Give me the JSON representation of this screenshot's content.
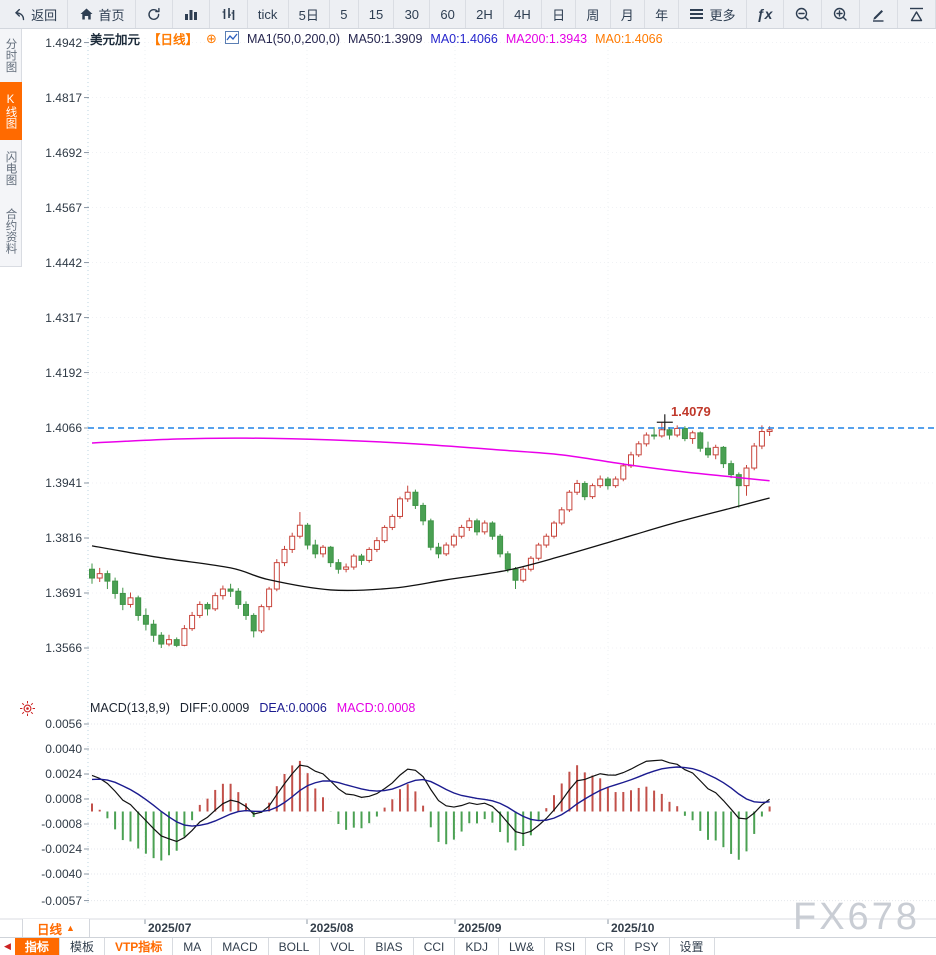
{
  "toolbar": {
    "items": [
      {
        "name": "back-button",
        "icon": "back",
        "label": "返回"
      },
      {
        "name": "home-button",
        "icon": "home",
        "label": "首页"
      },
      {
        "name": "refresh-button",
        "icon": "refresh",
        "label": ""
      },
      {
        "name": "bar-chart-button",
        "icon": "bars",
        "label": ""
      },
      {
        "name": "indicator-button",
        "icon": "candles",
        "label": ""
      },
      {
        "name": "period-tick",
        "icon": "",
        "label": "tick"
      },
      {
        "name": "period-5d",
        "icon": "",
        "label": "5日"
      },
      {
        "name": "period-5",
        "icon": "",
        "label": "5"
      },
      {
        "name": "period-15",
        "icon": "",
        "label": "15"
      },
      {
        "name": "period-30",
        "icon": "",
        "label": "30"
      },
      {
        "name": "period-60",
        "icon": "",
        "label": "60"
      },
      {
        "name": "period-2h",
        "icon": "",
        "label": "2H"
      },
      {
        "name": "period-4h",
        "icon": "",
        "label": "4H"
      },
      {
        "name": "period-day",
        "icon": "",
        "label": "日"
      },
      {
        "name": "period-week",
        "icon": "",
        "label": "周"
      },
      {
        "name": "period-month",
        "icon": "",
        "label": "月"
      },
      {
        "name": "period-year",
        "icon": "",
        "label": "年"
      },
      {
        "name": "more-button",
        "icon": "menu",
        "label": "更多"
      },
      {
        "name": "fx-button",
        "icon": "fx",
        "label": ""
      },
      {
        "name": "zoom-out-button",
        "icon": "zoomout",
        "label": ""
      },
      {
        "name": "zoom-in-button",
        "icon": "zoomin",
        "label": ""
      },
      {
        "name": "draw-button",
        "icon": "pencil",
        "label": ""
      },
      {
        "name": "shapes-button",
        "icon": "triangle",
        "label": ""
      }
    ]
  },
  "sidebar": {
    "items": [
      {
        "label": "分时图",
        "active": false
      },
      {
        "label": "K线图",
        "active": true
      },
      {
        "label": "闪电图",
        "active": false
      },
      {
        "label": "合约资料",
        "active": false
      }
    ]
  },
  "chart_header": {
    "symbol": "美元加元",
    "period_tag": "【日线】",
    "plus": "⊕",
    "ma_settings": "MA1(50,0,200,0)",
    "ma50": "MA50:1.3909",
    "ma0_blue": "MA0:1.4066",
    "ma200": "MA200:1.3943",
    "ma0_orange": "MA0:1.4066"
  },
  "macd_header": {
    "title": "MACD(13,8,9)",
    "diff": "DIFF:0.0009",
    "dea": "DEA:0.0006",
    "macd": "MACD:0.0008"
  },
  "price_axis": {
    "ticks": [
      1.4942,
      1.4817,
      1.4692,
      1.4567,
      1.4442,
      1.4317,
      1.4192,
      1.4066,
      1.3941,
      1.3816,
      1.3691,
      1.3566
    ]
  },
  "macd_axis": {
    "ticks": [
      0.0056,
      0.004,
      0.0024,
      0.0008,
      -0.0008,
      -0.0024,
      -0.004,
      -0.0057
    ]
  },
  "x_axis": {
    "labels": [
      "2025/07",
      "2025/08",
      "2025/09",
      "2025/10"
    ],
    "positions": [
      145,
      307,
      455,
      608
    ]
  },
  "annotation": {
    "peak": "1.4079"
  },
  "period_selector": {
    "label": "日线",
    "arrow": "▲"
  },
  "bottom_tabs": {
    "items": [
      {
        "label": "指标",
        "style": "active"
      },
      {
        "label": "模板",
        "style": ""
      },
      {
        "label": "VTP指标",
        "style": "orange"
      },
      {
        "label": "MA",
        "style": ""
      },
      {
        "label": "MACD",
        "style": ""
      },
      {
        "label": "BOLL",
        "style": ""
      },
      {
        "label": "VOL",
        "style": ""
      },
      {
        "label": "BIAS",
        "style": ""
      },
      {
        "label": "CCI",
        "style": ""
      },
      {
        "label": "KDJ",
        "style": ""
      },
      {
        "label": "LW&",
        "style": ""
      },
      {
        "label": "RSI",
        "style": ""
      },
      {
        "label": "CR",
        "style": ""
      },
      {
        "label": "PSY",
        "style": ""
      },
      {
        "label": "设置",
        "style": ""
      }
    ]
  },
  "watermark": "FX678",
  "colors": {
    "accent_orange": "#ff6a00",
    "up_red": "#c8453c",
    "down_green": "#3f9447",
    "down_green_fill": "#4aa053",
    "ma50": "#111111",
    "ma200": "#ea00ea",
    "dashed_blue": "#1e82e6",
    "dif_line": "#111111",
    "dea_line": "#1b1b8f",
    "hist_red": "#c2504a",
    "hist_green": "#4ba153"
  },
  "chart_data": {
    "type": "candlestick",
    "symbol": "美元加元",
    "interval": "日线",
    "months": [
      "2025/07",
      "2025/08",
      "2025/09",
      "2025/10"
    ],
    "price_axis_range": [
      1.3566,
      1.4942
    ],
    "dashed_level": 1.4066,
    "peak": {
      "index": 74,
      "value": 1.4079,
      "label": "1.4079"
    },
    "macd_params": [
      13,
      8,
      9
    ],
    "macd_values": {
      "diff": 0.0009,
      "dea": 0.0006,
      "hist": 0.0008
    },
    "ma50_anchors": [
      [
        0,
        1.3798
      ],
      [
        9,
        1.3771
      ],
      [
        18,
        1.3748
      ],
      [
        23,
        1.3721
      ],
      [
        31,
        1.3698
      ],
      [
        39,
        1.3702
      ],
      [
        46,
        1.3721
      ],
      [
        54,
        1.3743
      ],
      [
        61,
        1.3775
      ],
      [
        69,
        1.3816
      ],
      [
        76,
        1.3852
      ],
      [
        83,
        1.3884
      ],
      [
        88,
        1.3907
      ]
    ],
    "ma200_anchors": [
      [
        0,
        1.4032
      ],
      [
        11,
        1.4041
      ],
      [
        20,
        1.4043
      ],
      [
        31,
        1.4039
      ],
      [
        42,
        1.403
      ],
      [
        53,
        1.4016
      ],
      [
        61,
        1.4005
      ],
      [
        69,
        1.3984
      ],
      [
        76,
        1.3968
      ],
      [
        83,
        1.3955
      ],
      [
        88,
        1.3946
      ]
    ],
    "pre_closes": [
      1.356,
      1.3565,
      1.3572,
      1.358,
      1.3588,
      1.3596,
      1.3605,
      1.3612,
      1.362,
      1.3628,
      1.3636,
      1.3645,
      1.3655,
      1.3668,
      1.3684,
      1.3702,
      1.3722,
      1.3742,
      1.376,
      1.3752
    ],
    "candles": [
      [
        1.3745,
        1.3758,
        1.3712,
        1.3725
      ],
      [
        1.3725,
        1.3748,
        1.3716,
        1.3735
      ],
      [
        1.3735,
        1.3742,
        1.37,
        1.3718
      ],
      [
        1.3718,
        1.3726,
        1.3678,
        1.369
      ],
      [
        1.369,
        1.3703,
        1.3652,
        1.3665
      ],
      [
        1.3665,
        1.3692,
        1.3658,
        1.368
      ],
      [
        1.368,
        1.3685,
        1.3628,
        1.364
      ],
      [
        1.364,
        1.3656,
        1.3606,
        1.362
      ],
      [
        1.362,
        1.363,
        1.358,
        1.3595
      ],
      [
        1.3595,
        1.3602,
        1.3566,
        1.3575
      ],
      [
        1.3575,
        1.3596,
        1.357,
        1.3585
      ],
      [
        1.3585,
        1.359,
        1.3568,
        1.3572
      ],
      [
        1.3572,
        1.3618,
        1.357,
        1.361
      ],
      [
        1.361,
        1.3648,
        1.3605,
        1.364
      ],
      [
        1.364,
        1.3672,
        1.3634,
        1.3665
      ],
      [
        1.3665,
        1.367,
        1.364,
        1.3655
      ],
      [
        1.3655,
        1.3692,
        1.365,
        1.3685
      ],
      [
        1.3685,
        1.3708,
        1.3676,
        1.37
      ],
      [
        1.37,
        1.3712,
        1.3682,
        1.3695
      ],
      [
        1.3695,
        1.3702,
        1.3655,
        1.3665
      ],
      [
        1.3665,
        1.3672,
        1.363,
        1.364
      ],
      [
        1.364,
        1.3645,
        1.359,
        1.3605
      ],
      [
        1.3605,
        1.3665,
        1.36,
        1.366
      ],
      [
        1.366,
        1.3705,
        1.3652,
        1.37
      ],
      [
        1.37,
        1.3768,
        1.3695,
        1.376
      ],
      [
        1.376,
        1.3798,
        1.3752,
        1.379
      ],
      [
        1.379,
        1.3828,
        1.3782,
        1.382
      ],
      [
        1.382,
        1.3875,
        1.3815,
        1.3845
      ],
      [
        1.3845,
        1.385,
        1.379,
        1.38
      ],
      [
        1.38,
        1.3812,
        1.377,
        1.378
      ],
      [
        1.378,
        1.38,
        1.3772,
        1.3795
      ],
      [
        1.3795,
        1.3798,
        1.375,
        1.376
      ],
      [
        1.376,
        1.3768,
        1.3735,
        1.3745
      ],
      [
        1.3745,
        1.3758,
        1.3738,
        1.375
      ],
      [
        1.375,
        1.378,
        1.3744,
        1.3775
      ],
      [
        1.3775,
        1.378,
        1.3755,
        1.3765
      ],
      [
        1.3765,
        1.3795,
        1.376,
        1.379
      ],
      [
        1.379,
        1.3818,
        1.3784,
        1.381
      ],
      [
        1.381,
        1.3845,
        1.3805,
        1.384
      ],
      [
        1.384,
        1.387,
        1.3834,
        1.3865
      ],
      [
        1.3865,
        1.391,
        1.386,
        1.3905
      ],
      [
        1.3905,
        1.3935,
        1.3898,
        1.392
      ],
      [
        1.392,
        1.3926,
        1.3882,
        1.389
      ],
      [
        1.389,
        1.3896,
        1.3845,
        1.3855
      ],
      [
        1.3855,
        1.386,
        1.3788,
        1.3795
      ],
      [
        1.3795,
        1.3805,
        1.377,
        1.378
      ],
      [
        1.378,
        1.3806,
        1.3775,
        1.38
      ],
      [
        1.38,
        1.3826,
        1.3794,
        1.382
      ],
      [
        1.382,
        1.3846,
        1.3815,
        1.384
      ],
      [
        1.384,
        1.3862,
        1.3832,
        1.3855
      ],
      [
        1.3855,
        1.386,
        1.3822,
        1.383
      ],
      [
        1.383,
        1.3856,
        1.3824,
        1.385
      ],
      [
        1.385,
        1.3854,
        1.3812,
        1.382
      ],
      [
        1.382,
        1.3825,
        1.3772,
        1.378
      ],
      [
        1.378,
        1.3786,
        1.3738,
        1.3745
      ],
      [
        1.3745,
        1.375,
        1.37,
        1.372
      ],
      [
        1.372,
        1.375,
        1.3715,
        1.3745
      ],
      [
        1.3745,
        1.3775,
        1.374,
        1.377
      ],
      [
        1.377,
        1.3805,
        1.3765,
        1.38
      ],
      [
        1.38,
        1.3826,
        1.3794,
        1.382
      ],
      [
        1.382,
        1.3855,
        1.3815,
        1.385
      ],
      [
        1.385,
        1.3886,
        1.3845,
        1.388
      ],
      [
        1.388,
        1.3925,
        1.3875,
        1.392
      ],
      [
        1.392,
        1.3948,
        1.3914,
        1.394
      ],
      [
        1.394,
        1.3945,
        1.3902,
        1.391
      ],
      [
        1.391,
        1.394,
        1.3905,
        1.3935
      ],
      [
        1.3935,
        1.3958,
        1.393,
        1.395
      ],
      [
        1.395,
        1.3955,
        1.3926,
        1.3935
      ],
      [
        1.3935,
        1.3956,
        1.393,
        1.395
      ],
      [
        1.395,
        1.3986,
        1.3945,
        1.398
      ],
      [
        1.398,
        1.4012,
        1.3975,
        1.4005
      ],
      [
        1.4005,
        1.4036,
        1.4,
        1.403
      ],
      [
        1.403,
        1.4056,
        1.4024,
        1.405
      ],
      [
        1.405,
        1.4068,
        1.404,
        1.4048
      ],
      [
        1.4048,
        1.4079,
        1.4044,
        1.4062
      ],
      [
        1.4062,
        1.4068,
        1.404,
        1.405
      ],
      [
        1.405,
        1.4072,
        1.4045,
        1.4065
      ],
      [
        1.4065,
        1.407,
        1.4036,
        1.4042
      ],
      [
        1.4042,
        1.406,
        1.403,
        1.4055
      ],
      [
        1.4055,
        1.4058,
        1.4012,
        1.402
      ],
      [
        1.402,
        1.4035,
        1.3998,
        1.4005
      ],
      [
        1.4005,
        1.4028,
        1.3995,
        1.4022
      ],
      [
        1.4022,
        1.4025,
        1.3975,
        1.3985
      ],
      [
        1.3985,
        1.3992,
        1.3952,
        1.396
      ],
      [
        1.396,
        1.3965,
        1.3885,
        1.3935
      ],
      [
        1.3935,
        1.3982,
        1.3912,
        1.3975
      ],
      [
        1.3975,
        1.4032,
        1.397,
        1.4025
      ],
      [
        1.4025,
        1.4072,
        1.4018,
        1.4058
      ],
      [
        1.4058,
        1.407,
        1.4048,
        1.4062
      ]
    ]
  }
}
